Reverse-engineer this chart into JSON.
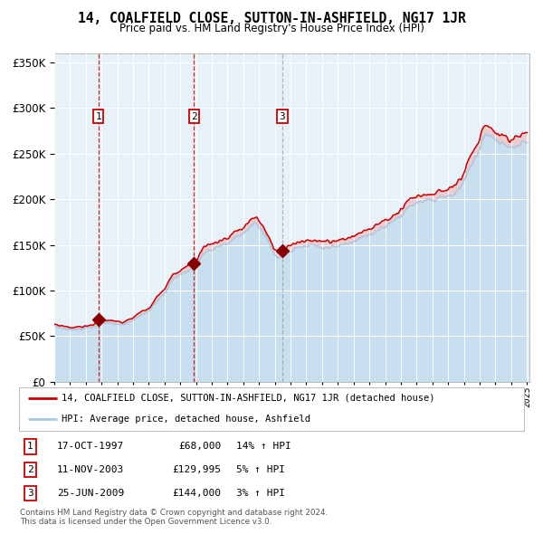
{
  "title": "14, COALFIELD CLOSE, SUTTON-IN-ASHFIELD, NG17 1JR",
  "subtitle": "Price paid vs. HM Land Registry's House Price Index (HPI)",
  "legend_line1": "14, COALFIELD CLOSE, SUTTON-IN-ASHFIELD, NG17 1JR (detached house)",
  "legend_line2": "HPI: Average price, detached house, Ashfield",
  "sale1_date": "17-OCT-1997",
  "sale1_price": 68000,
  "sale1_hpi": "14%",
  "sale2_date": "11-NOV-2003",
  "sale2_price": 129995,
  "sale2_hpi": "5%",
  "sale3_date": "25-JUN-2009",
  "sale3_price": 144000,
  "sale3_hpi": "3%",
  "copyright": "Contains HM Land Registry data © Crown copyright and database right 2024.\nThis data is licensed under the Open Government Licence v3.0.",
  "hpi_color": "#a8c8e8",
  "hpi_fill_color": "#c8dff0",
  "property_color": "#cc0000",
  "property_fill_color": "#e8c0c0",
  "sale_marker_color": "#880000",
  "plot_bg": "#e8f0f8",
  "grid_color": "#ffffff",
  "vline_sale1_color": "#cc0000",
  "vline_sale2_color": "#cc0000",
  "vline_sale3_color": "#999999",
  "ylim": [
    0,
    360000
  ],
  "yticks": [
    0,
    50000,
    100000,
    150000,
    200000,
    250000,
    300000,
    350000
  ]
}
